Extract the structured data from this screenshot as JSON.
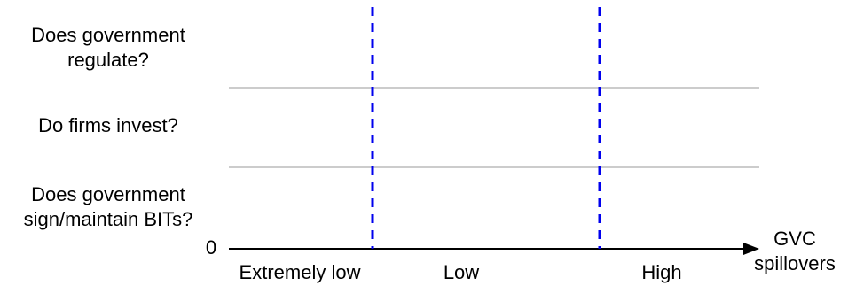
{
  "rows": [
    {
      "line1": "Does government",
      "line2": "regulate?"
    },
    {
      "line1": "Do firms invest?"
    },
    {
      "line1": "Does government",
      "line2": "sign/maintain BITs?"
    }
  ],
  "axis": {
    "origin_label": "0",
    "label_line1": "GVC",
    "label_line2": "spillovers",
    "regions": [
      "Extremely low",
      "Low",
      "High"
    ]
  },
  "colors": {
    "divider": "#0000ee",
    "axis": "#000000",
    "row_separator": "#cccccc"
  }
}
